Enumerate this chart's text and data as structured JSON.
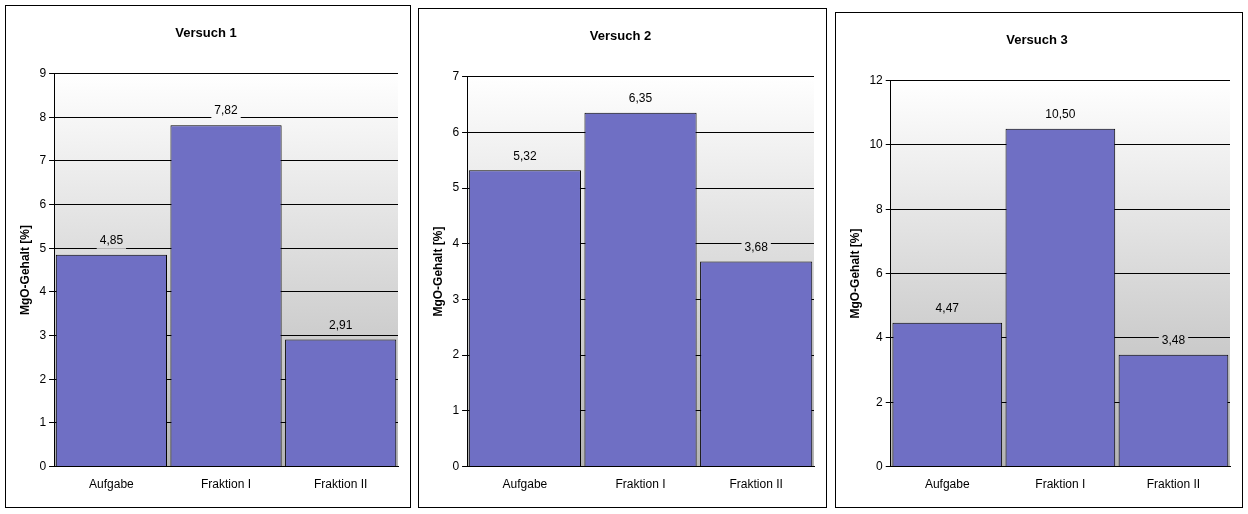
{
  "chart_data": [
    {
      "type": "bar",
      "title": "Versuch 1",
      "ylabel": "MgO-Gehalt [%]",
      "categories": [
        "Aufgabe",
        "Fraktion I",
        "Fraktion II"
      ],
      "values": [
        4.85,
        7.82,
        2.91
      ],
      "value_labels": [
        "4,85",
        "7,82",
        "2,91"
      ],
      "color": "#6f6fc4",
      "ylim": [
        0,
        9
      ],
      "yticks": [
        0,
        1,
        2,
        3,
        4,
        5,
        6,
        7,
        8,
        9
      ],
      "grid": "y",
      "legend": false
    },
    {
      "type": "bar",
      "title": "Versuch 2",
      "ylabel": "MgO-Gehalt [%]",
      "categories": [
        "Aufgabe",
        "Fraktion I",
        "Fraktion II"
      ],
      "values": [
        5.32,
        6.35,
        3.68
      ],
      "value_labels": [
        "5,32",
        "6,35",
        "3,68"
      ],
      "color": "#6f6fc4",
      "ylim": [
        0,
        7
      ],
      "yticks": [
        0,
        1,
        2,
        3,
        4,
        5,
        6,
        7
      ],
      "grid": "y",
      "legend": false
    },
    {
      "type": "bar",
      "title": "Versuch 3",
      "ylabel": "MgO-Gehalt [%]",
      "categories": [
        "Aufgabe",
        "Fraktion I",
        "Fraktion II"
      ],
      "values": [
        4.47,
        10.5,
        3.48
      ],
      "value_labels": [
        "4,47",
        "10,50",
        "3,48"
      ],
      "color": "#6f6fc4",
      "ylim": [
        0,
        12
      ],
      "yticks": [
        0,
        2,
        4,
        6,
        8,
        10,
        12
      ],
      "grid": "y",
      "legend": false
    }
  ]
}
